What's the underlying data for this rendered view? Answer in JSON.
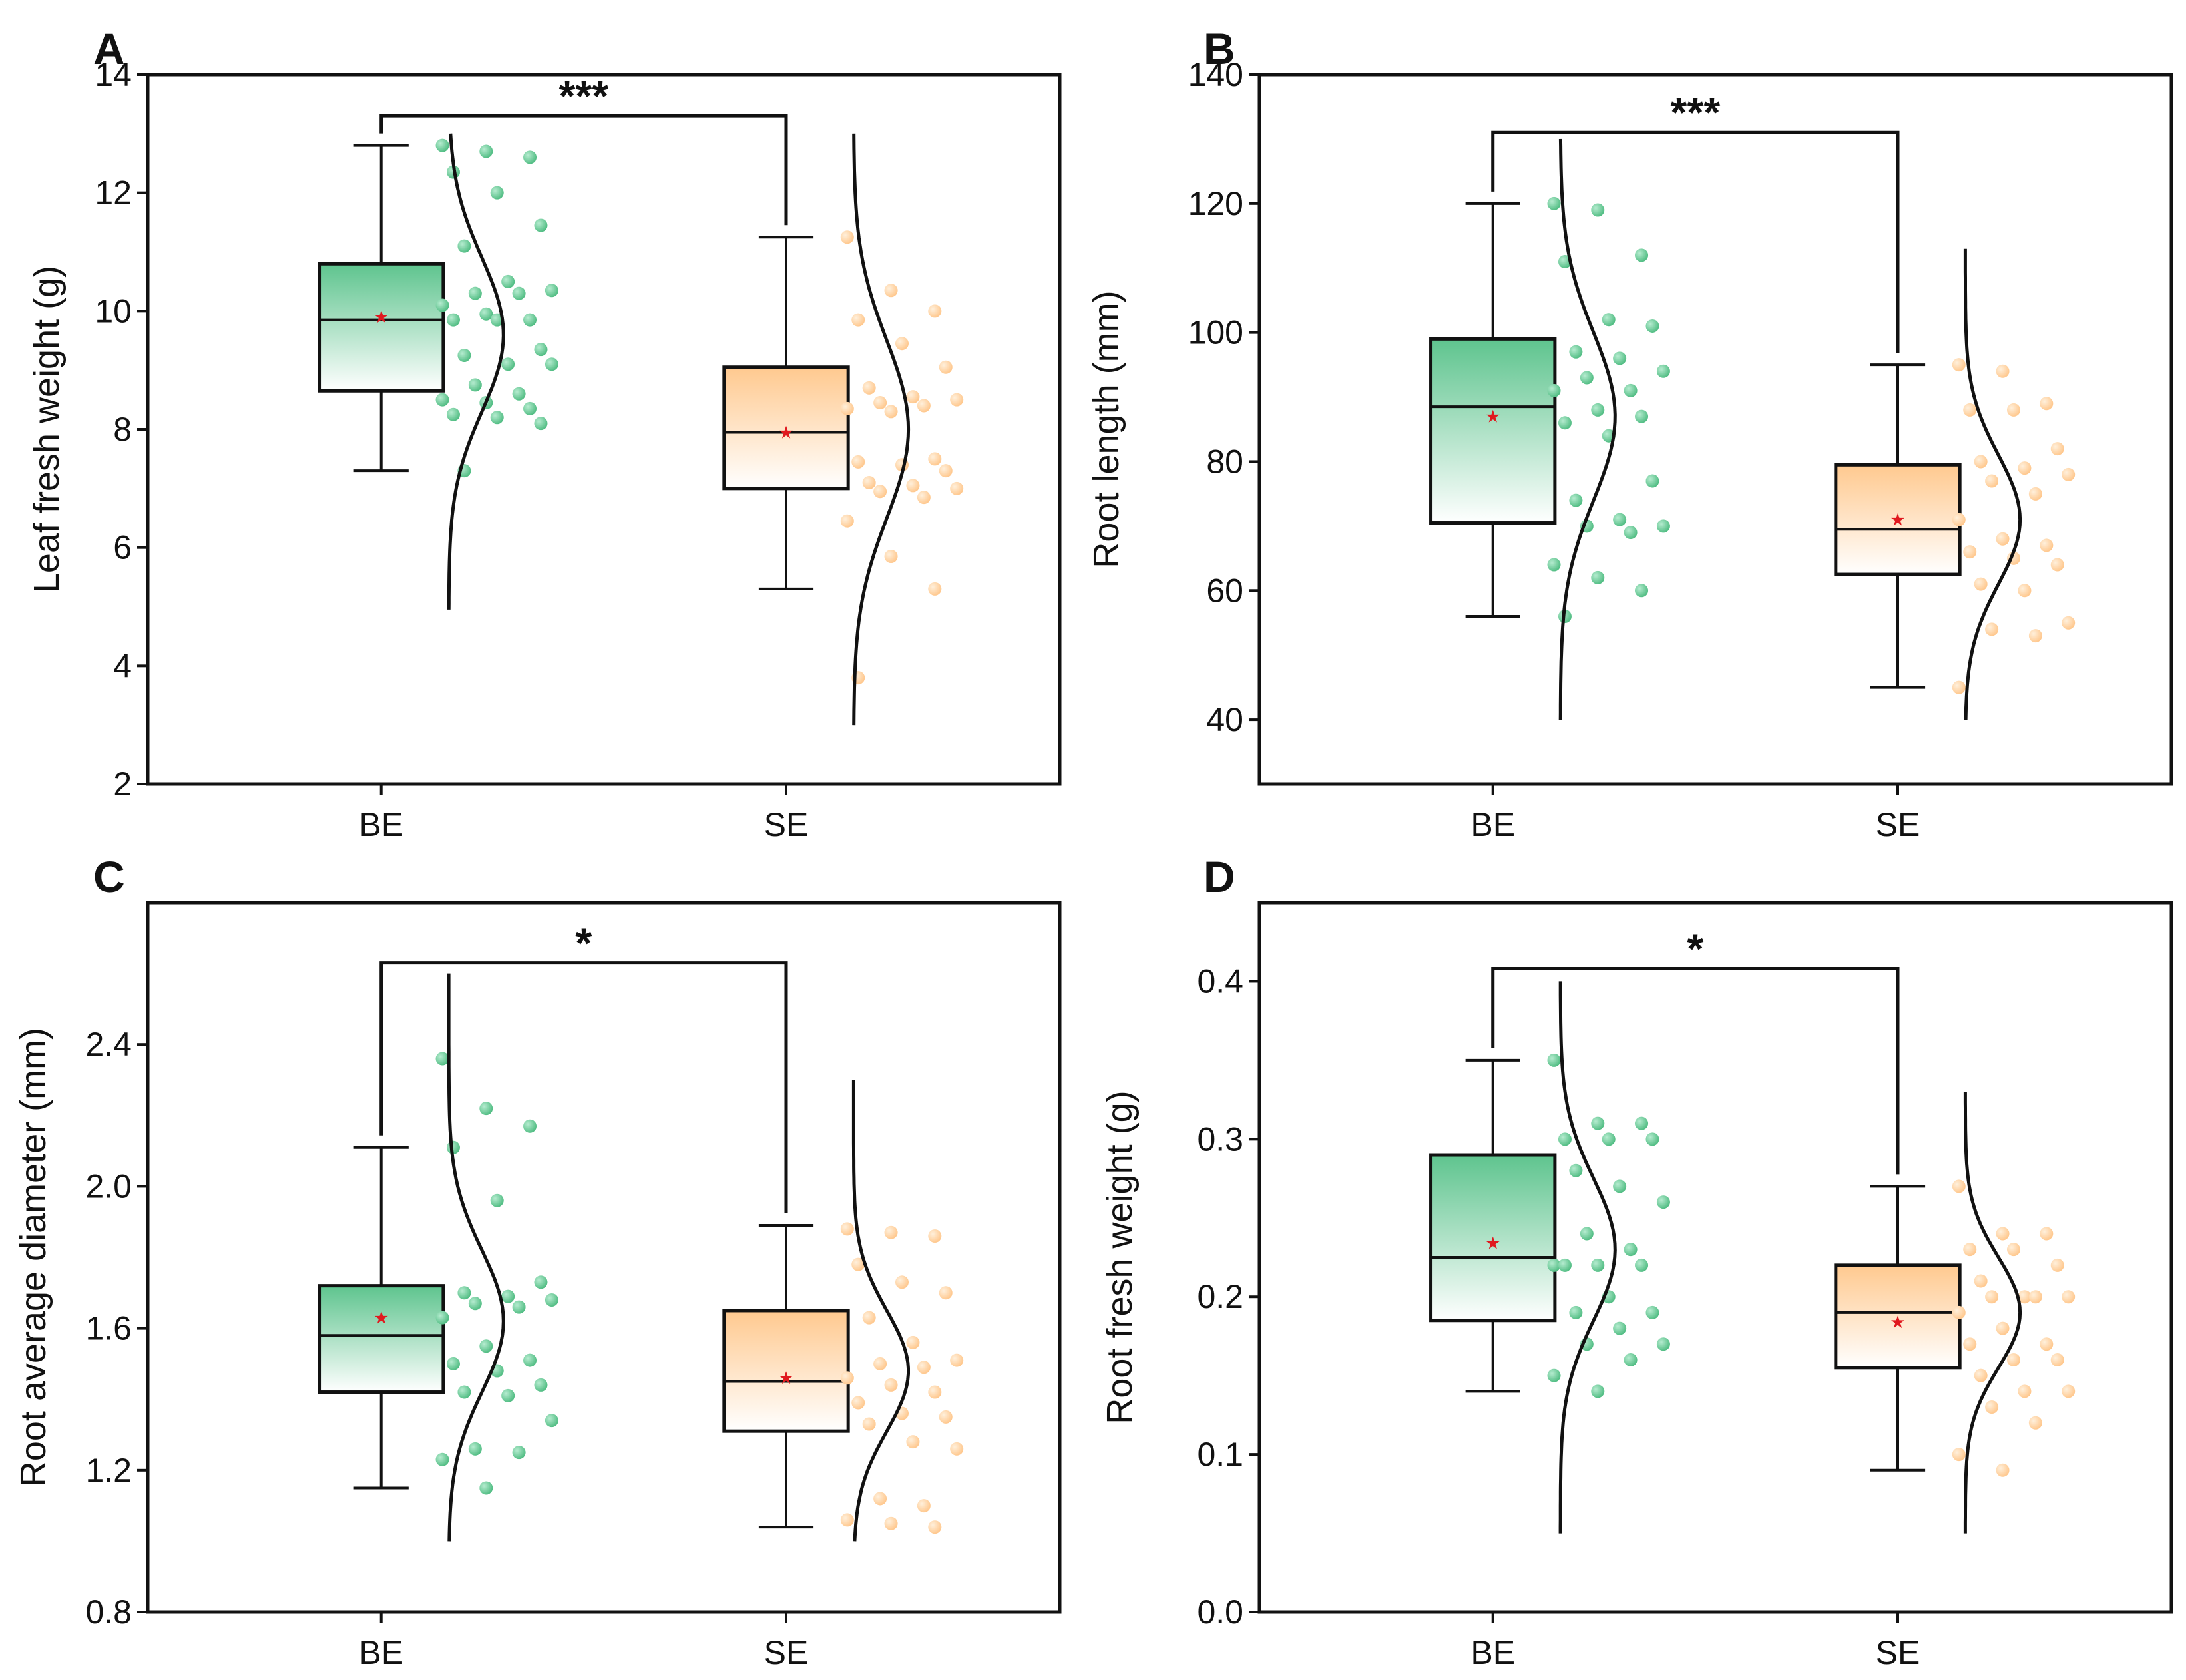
{
  "colors": {
    "be": "#5ec48e",
    "se": "#ffcf99",
    "mean": "#e0191f",
    "line": "#111111"
  },
  "chart_data": [
    {
      "type": "box",
      "panel": "A",
      "categories": [
        "BE",
        "SE"
      ],
      "ylabel": "Leaf fresh weight (g)",
      "xlabel": "",
      "ylim": [
        2,
        14
      ],
      "yticks": [
        "2",
        "4",
        "6",
        "8",
        "10",
        "12",
        "14"
      ],
      "ytick_values": [
        2,
        4,
        6,
        8,
        10,
        12,
        14
      ],
      "significance": "***",
      "sig_level": 13.3,
      "series": [
        {
          "name": "BE",
          "q1": 8.65,
          "median": 9.85,
          "q3": 10.8,
          "mean": 9.9,
          "whisker_low": 7.3,
          "whisker_high": 12.8,
          "density_range": [
            4.95,
            13.0
          ],
          "density_mean": 9.6,
          "density_sd": 1.3,
          "points": [
            12.8,
            12.7,
            12.6,
            12.35,
            12.0,
            11.45,
            11.1,
            10.5,
            10.35,
            10.3,
            10.3,
            10.1,
            9.95,
            9.85,
            9.85,
            9.85,
            9.35,
            9.25,
            9.1,
            9.1,
            8.75,
            8.6,
            8.5,
            8.45,
            8.35,
            8.25,
            8.2,
            8.1,
            7.3
          ]
        },
        {
          "name": "SE",
          "q1": 7.0,
          "median": 7.95,
          "q3": 9.05,
          "mean": 7.95,
          "whisker_low": 5.3,
          "whisker_high": 11.25,
          "density_range": [
            3.0,
            13.0
          ],
          "density_mean": 8.0,
          "density_sd": 1.5,
          "points": [
            11.25,
            10.35,
            10.0,
            9.85,
            9.45,
            9.05,
            8.7,
            8.55,
            8.5,
            8.45,
            8.4,
            8.35,
            8.3,
            7.5,
            7.45,
            7.4,
            7.3,
            7.1,
            7.05,
            7.0,
            6.95,
            6.85,
            6.45,
            5.85,
            5.3,
            3.8
          ]
        }
      ]
    },
    {
      "type": "box",
      "panel": "B",
      "categories": [
        "BE",
        "SE"
      ],
      "ylabel": "Root length (mm)",
      "xlabel": "",
      "ylim": [
        30,
        140
      ],
      "yticks": [
        "40",
        "60",
        "80",
        "100",
        "120",
        "140"
      ],
      "ytick_values": [
        40,
        60,
        80,
        100,
        120,
        140
      ],
      "significance": "***",
      "sig_level": 131,
      "series": [
        {
          "name": "BE",
          "q1": 70.5,
          "median": 88.5,
          "q3": 99,
          "mean": 87,
          "whisker_low": 56,
          "whisker_high": 120,
          "density_range": [
            40,
            130
          ],
          "density_mean": 87,
          "density_sd": 13,
          "points": [
            120,
            119,
            112,
            111,
            102,
            101,
            97,
            96,
            94,
            93,
            91,
            91,
            88,
            87,
            86,
            84,
            77,
            74,
            71,
            70,
            70,
            69,
            64,
            62,
            60,
            56
          ]
        },
        {
          "name": "SE",
          "q1": 62.5,
          "median": 69.5,
          "q3": 79.5,
          "mean": 71,
          "whisker_low": 45,
          "whisker_high": 95,
          "density_range": [
            40,
            113
          ],
          "density_mean": 71,
          "density_sd": 10,
          "points": [
            95,
            94,
            89,
            88,
            88,
            82,
            80,
            79,
            78,
            77,
            75,
            71,
            68,
            67,
            66,
            65,
            64,
            61,
            60,
            55,
            54,
            53,
            45
          ]
        }
      ]
    },
    {
      "type": "box",
      "panel": "C",
      "categories": [
        "BE",
        "SE"
      ],
      "ylabel": "Root average diameter (mm)",
      "xlabel": "",
      "ylim": [
        0.8,
        2.8
      ],
      "yticks": [
        "0.8",
        "1.2",
        "1.6",
        "2.0",
        "2.4"
      ],
      "ytick_values": [
        0.8,
        1.2,
        1.6,
        2.0,
        2.4
      ],
      "significance": "*",
      "sig_level": 2.63,
      "series": [
        {
          "name": "BE",
          "q1": 1.42,
          "median": 1.58,
          "q3": 1.72,
          "mean": 1.63,
          "whisker_low": 1.15,
          "whisker_high": 2.11,
          "density_range": [
            1.0,
            2.6
          ],
          "density_mean": 1.62,
          "density_sd": 0.2,
          "points": [
            2.36,
            2.22,
            2.17,
            2.11,
            1.96,
            1.73,
            1.7,
            1.69,
            1.68,
            1.67,
            1.66,
            1.63,
            1.55,
            1.51,
            1.5,
            1.48,
            1.44,
            1.42,
            1.41,
            1.34,
            1.26,
            1.25,
            1.23,
            1.15
          ]
        },
        {
          "name": "SE",
          "q1": 1.31,
          "median": 1.45,
          "q3": 1.65,
          "mean": 1.46,
          "whisker_low": 1.04,
          "whisker_high": 1.89,
          "density_range": [
            1.0,
            2.3
          ],
          "density_mean": 1.48,
          "density_sd": 0.17,
          "points": [
            1.88,
            1.87,
            1.86,
            1.78,
            1.73,
            1.7,
            1.63,
            1.56,
            1.51,
            1.5,
            1.49,
            1.46,
            1.44,
            1.42,
            1.39,
            1.36,
            1.35,
            1.33,
            1.28,
            1.26,
            1.12,
            1.1,
            1.06,
            1.05,
            1.04
          ]
        }
      ]
    },
    {
      "type": "box",
      "panel": "D",
      "categories": [
        "BE",
        "SE"
      ],
      "ylabel": "Root fresh weight (g)",
      "xlabel": "",
      "ylim": [
        0.0,
        0.45
      ],
      "yticks": [
        "0.0",
        "0.1",
        "0.2",
        "0.3",
        "0.4"
      ],
      "ytick_values": [
        0.0,
        0.1,
        0.2,
        0.3,
        0.4
      ],
      "significance": "*",
      "sig_level": 0.408,
      "series": [
        {
          "name": "BE",
          "q1": 0.185,
          "median": 0.225,
          "q3": 0.29,
          "mean": 0.234,
          "whisker_low": 0.14,
          "whisker_high": 0.35,
          "density_range": [
            0.05,
            0.4
          ],
          "density_mean": 0.23,
          "density_sd": 0.045,
          "points": [
            0.35,
            0.31,
            0.31,
            0.3,
            0.3,
            0.3,
            0.28,
            0.27,
            0.26,
            0.24,
            0.23,
            0.22,
            0.22,
            0.22,
            0.22,
            0.2,
            0.19,
            0.19,
            0.18,
            0.17,
            0.17,
            0.16,
            0.15,
            0.14
          ]
        },
        {
          "name": "SE",
          "q1": 0.155,
          "median": 0.19,
          "q3": 0.22,
          "mean": 0.184,
          "whisker_low": 0.09,
          "whisker_high": 0.27,
          "density_range": [
            0.05,
            0.33
          ],
          "density_mean": 0.19,
          "density_sd": 0.035,
          "points": [
            0.27,
            0.24,
            0.24,
            0.23,
            0.23,
            0.22,
            0.21,
            0.2,
            0.2,
            0.2,
            0.2,
            0.19,
            0.18,
            0.17,
            0.17,
            0.16,
            0.16,
            0.15,
            0.14,
            0.14,
            0.13,
            0.12,
            0.1,
            0.09
          ]
        }
      ]
    }
  ]
}
